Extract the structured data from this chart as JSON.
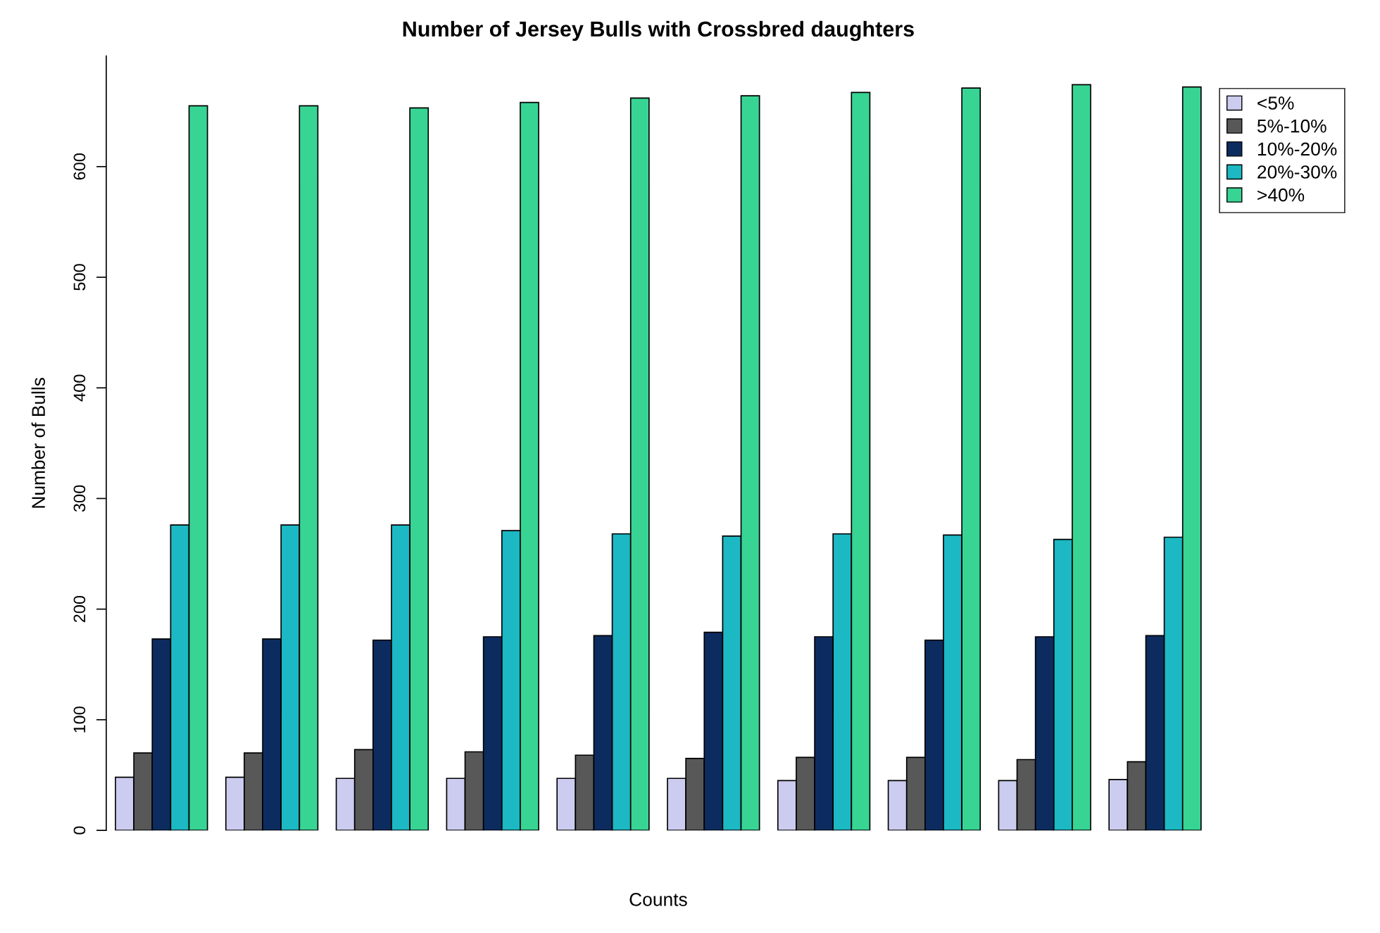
{
  "chart_data": {
    "type": "bar",
    "title": "Number of Jersey Bulls with Crossbred daughters",
    "xlabel": "Counts",
    "ylabel": "Number of Bulls",
    "categories": [
      null,
      null,
      null,
      null,
      null,
      null,
      null,
      null,
      null,
      null
    ],
    "series": [
      {
        "name": "<5%",
        "color": "#ccccf0",
        "values": [
          48,
          48,
          47,
          47,
          47,
          47,
          45,
          45,
          45,
          46
        ]
      },
      {
        "name": "5%-10%",
        "color": "#585858",
        "values": [
          70,
          70,
          73,
          71,
          68,
          65,
          66,
          66,
          64,
          62
        ]
      },
      {
        "name": "10%-20%",
        "color": "#0c2c60",
        "values": [
          173,
          173,
          172,
          175,
          176,
          179,
          175,
          172,
          175,
          176
        ]
      },
      {
        "name": "20%-30%",
        "color": "#1cb8c4",
        "values": [
          276,
          276,
          276,
          271,
          268,
          266,
          268,
          267,
          263,
          265
        ]
      },
      {
        "name": ">40%",
        "color": "#38d494",
        "values": [
          655,
          655,
          653,
          658,
          662,
          664,
          667,
          671,
          674,
          672
        ]
      }
    ],
    "ylim": [
      0,
      700
    ],
    "yticks": [
      0,
      100,
      200,
      300,
      400,
      500,
      600
    ],
    "grid": false,
    "legend": "top right"
  }
}
